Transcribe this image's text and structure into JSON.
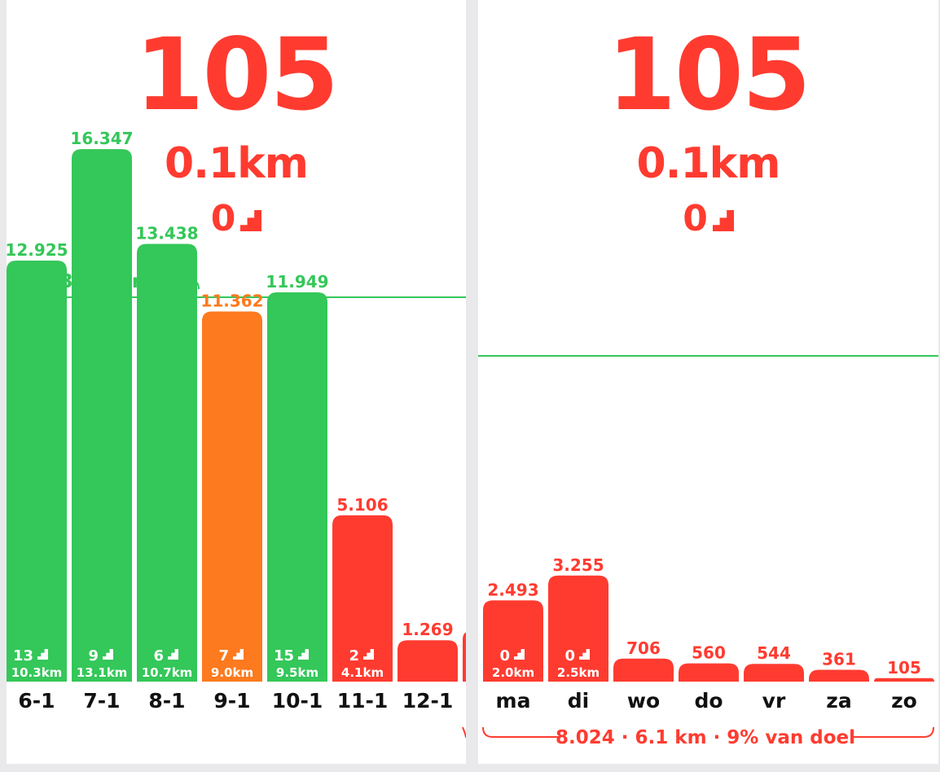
{
  "colors": {
    "green": "#34c759",
    "orange": "#fd7a1e",
    "red": "#ff3b30",
    "text": "#111111"
  },
  "panels": [
    {
      "summary": {
        "steps": "105",
        "distance": "0.1km",
        "stairs": "0"
      },
      "streak_label": "3 dagen",
      "goal_line": true,
      "chart_data": {
        "type": "bar",
        "categories": [
          "6-1",
          "7-1",
          "8-1",
          "9-1",
          "10-1",
          "11-1",
          "12-1"
        ],
        "values": [
          12925,
          16347,
          13438,
          11362,
          11949,
          5106,
          1269
        ],
        "value_labels": [
          "12.925",
          "16.347",
          "13.438",
          "11.362",
          "11.949",
          "5.106",
          "1.269"
        ],
        "status": [
          "green",
          "green",
          "green",
          "orange",
          "green",
          "red",
          "red"
        ],
        "stairs": [
          "13",
          "9",
          "6",
          "7",
          "15",
          "2",
          ""
        ],
        "distances": [
          "10.3km",
          "13.1km",
          "10.7km",
          "9.0km",
          "9.5km",
          "4.1km",
          ""
        ],
        "goal": 11800,
        "ymax": 18000,
        "grid": false
      }
    },
    {
      "summary": {
        "steps": "105",
        "distance": "0.1km",
        "stairs": "0"
      },
      "goal_line": true,
      "footer": "8.024 · 6.1 km · 9% van doel",
      "chart_data": {
        "type": "bar",
        "categories": [
          "ma",
          "di",
          "wo",
          "do",
          "vr",
          "za",
          "zo"
        ],
        "values": [
          2493,
          3255,
          706,
          560,
          544,
          361,
          105
        ],
        "value_labels": [
          "2.493",
          "3.255",
          "706",
          "560",
          "544",
          "361",
          "105"
        ],
        "status": [
          "red",
          "red",
          "red",
          "red",
          "red",
          "red",
          "red"
        ],
        "stairs": [
          "0",
          "0",
          "",
          "",
          "",
          "",
          ""
        ],
        "distances": [
          "2.0km",
          "2.5km",
          "",
          "",
          "",
          "",
          ""
        ],
        "goal": 10000,
        "ymax": 18000,
        "grid": false
      }
    }
  ]
}
